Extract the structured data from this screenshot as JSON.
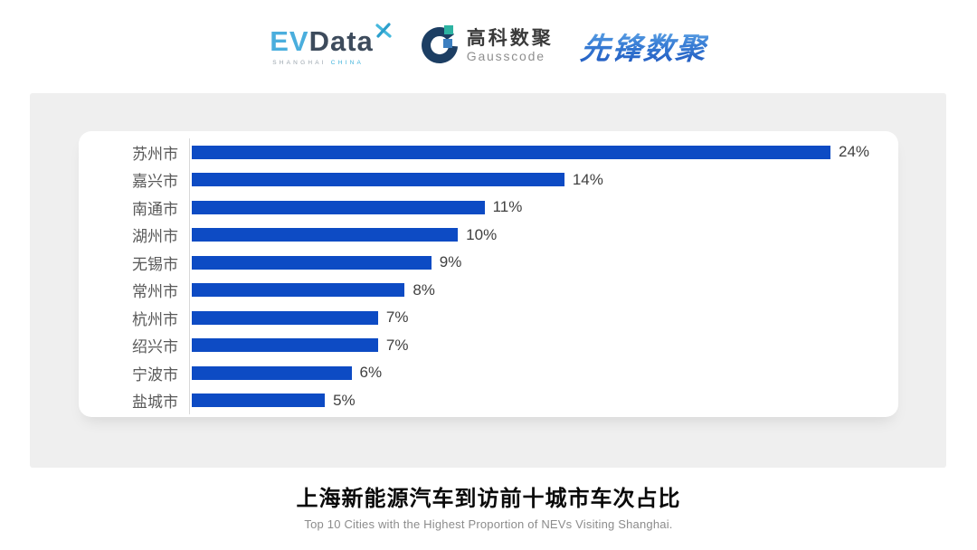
{
  "header": {
    "evdata": {
      "part_ev": "EV",
      "part_data": "Data",
      "sub_left": "SHANGHAI",
      "sub_right": "CHINA"
    },
    "gausscode": {
      "name_cn": "高科数聚",
      "name_en": "Gausscode"
    },
    "xianfeng": {
      "name": "先锋数聚"
    }
  },
  "chart_data": {
    "type": "bar",
    "orientation": "horizontal",
    "title": "上海新能源汽车到访前十城市车次占比",
    "subtitle": "Top 10 Cities with the Highest Proportion of  NEVs Visiting Shanghai.",
    "categories": [
      "苏州市",
      "嘉兴市",
      "南通市",
      "湖州市",
      "无锡市",
      "常州市",
      "杭州市",
      "绍兴市",
      "宁波市",
      "盐城市"
    ],
    "values": [
      24,
      14,
      11,
      10,
      9,
      8,
      7,
      7,
      6,
      5
    ],
    "value_labels": [
      "24%",
      "14%",
      "11%",
      "10%",
      "9%",
      "8%",
      "7%",
      "7%",
      "6%",
      "5%"
    ],
    "unit": "%",
    "xlim": [
      0,
      24
    ],
    "grid": false,
    "legend": "none",
    "bar_color": "#0d4bc4",
    "axis_line_color": "#d9d9d9",
    "category_label_color": "#595959",
    "value_label_color": "#404040"
  },
  "footer": {
    "title": "上海新能源汽车到访前十城市车次占比",
    "subtitle": "Top 10 Cities with the Highest Proportion of  NEVs Visiting Shanghai."
  },
  "colors": {
    "panel_bg": "#efefef",
    "card_bg": "#ffffff",
    "evdata_cyan": "#4aaedd",
    "evdata_navy": "#3d4b5c",
    "gausscode_navy": "#1c3e63",
    "gausscode_teal": "#2db3a2",
    "gausscode_blue": "#3c7fc0",
    "xianfeng_blue": "#1c55bd"
  }
}
